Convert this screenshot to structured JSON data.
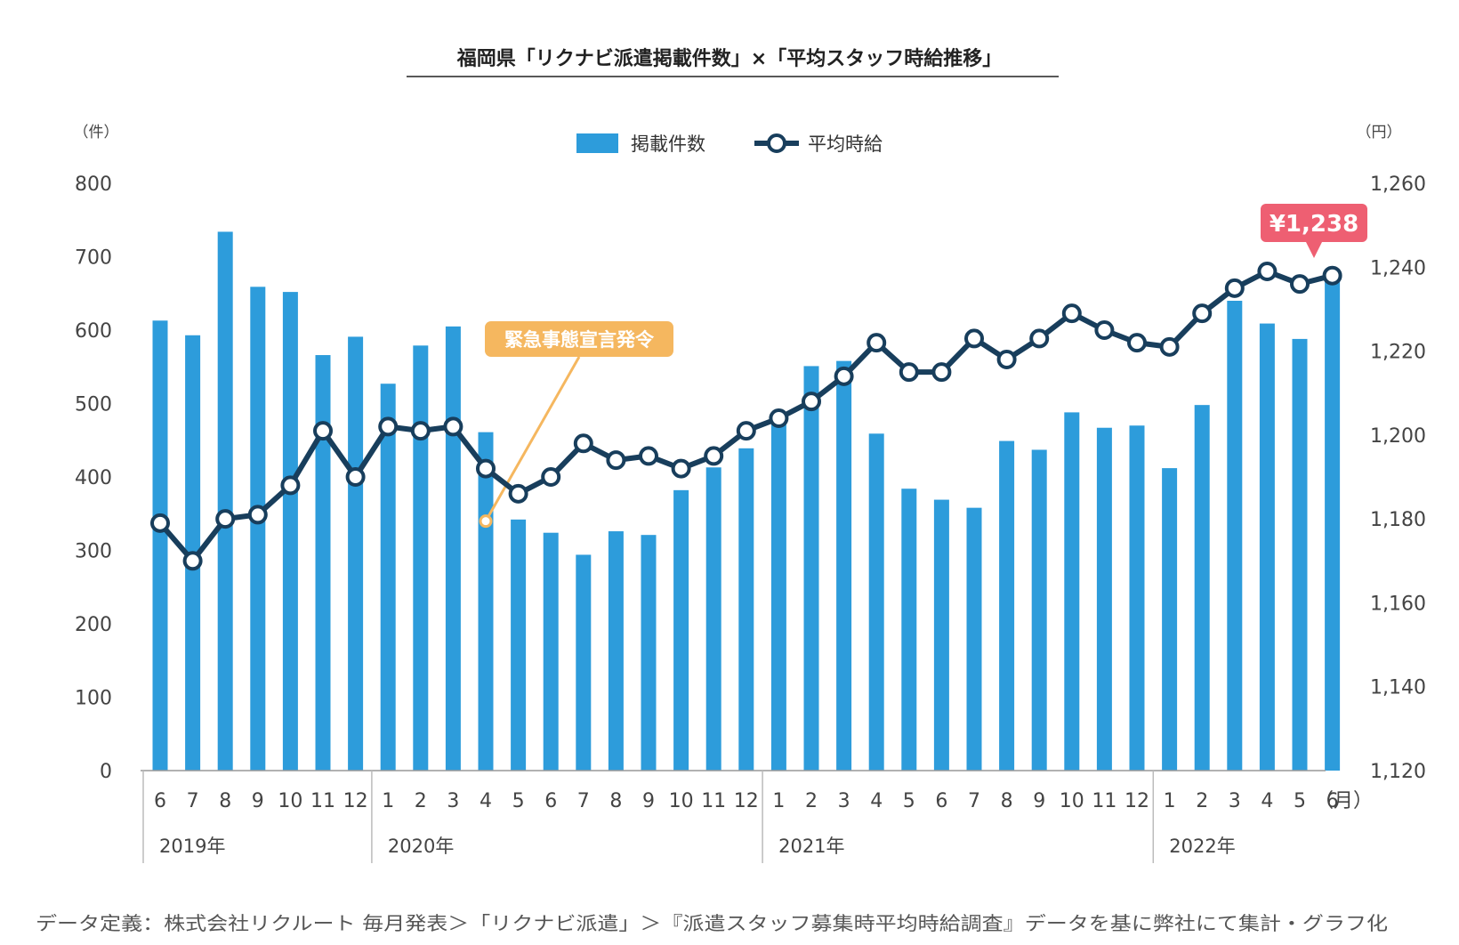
{
  "chart_data": {
    "type": "bar",
    "title": "福岡県「リクナビ派遣掲載件数」×「平均スタッフ時給推移」",
    "categories": [
      "6",
      "7",
      "8",
      "9",
      "10",
      "11",
      "12",
      "1",
      "2",
      "3",
      "4",
      "5",
      "6",
      "7",
      "8",
      "9",
      "10",
      "11",
      "12",
      "1",
      "2",
      "3",
      "4",
      "5",
      "6",
      "7",
      "8",
      "9",
      "10",
      "11",
      "12",
      "1",
      "2",
      "3",
      "4",
      "5",
      "6"
    ],
    "years": [
      {
        "label": "2019年",
        "start_index": 0
      },
      {
        "label": "2020年",
        "start_index": 7
      },
      {
        "label": "2021年",
        "start_index": 19
      },
      {
        "label": "2022年",
        "start_index": 31
      }
    ],
    "series": [
      {
        "name": "掲載件数",
        "type": "bar",
        "axis": "left",
        "color": "#2d9cdb",
        "values": [
          613,
          593,
          734,
          659,
          652,
          566,
          591,
          527,
          579,
          605,
          461,
          342,
          324,
          294,
          326,
          321,
          382,
          413,
          439,
          478,
          551,
          558,
          459,
          384,
          369,
          358,
          449,
          437,
          488,
          467,
          470,
          412,
          498,
          640,
          609,
          588,
          667
        ]
      },
      {
        "name": "平均時給",
        "type": "line",
        "axis": "right",
        "color": "#183e5c",
        "values": [
          1179,
          1170,
          1180,
          1181,
          1188,
          1201,
          1190,
          1202,
          1201,
          1202,
          1192,
          1186,
          1190,
          1198,
          1194,
          1195,
          1192,
          1195,
          1201,
          1204,
          1208,
          1214,
          1222,
          1215,
          1215,
          1223,
          1218,
          1223,
          1229,
          1225,
          1222,
          1221,
          1229,
          1235,
          1239,
          1236,
          1238
        ]
      }
    ],
    "y_left": {
      "unit": "（件）",
      "min": 0,
      "max": 800,
      "ticks": [
        "0",
        "100",
        "200",
        "300",
        "400",
        "500",
        "600",
        "700",
        "800"
      ]
    },
    "y_right": {
      "unit": "（円）",
      "min": 1120,
      "max": 1260,
      "ticks": [
        "1,120",
        "1,140",
        "1,160",
        "1,180",
        "1,200",
        "1,220",
        "1,240",
        "1,260"
      ]
    },
    "x_unit": "（月）",
    "annotations": [
      {
        "text": "緊急事態宣言発令",
        "index": 10,
        "color": "#f5b75f"
      },
      {
        "text": "¥1,238",
        "index": 36,
        "color": "#ee5f72"
      }
    ],
    "legend": {
      "position": "top-center",
      "items": [
        "掲載件数",
        "平均時給"
      ]
    },
    "grid": false
  },
  "source": "データ定義：株式会社リクルート 毎月発表＞「リクナビ派遣」＞『派遣スタッフ募集時平均時給調査』データを基に弊社にて集計・グラフ化"
}
